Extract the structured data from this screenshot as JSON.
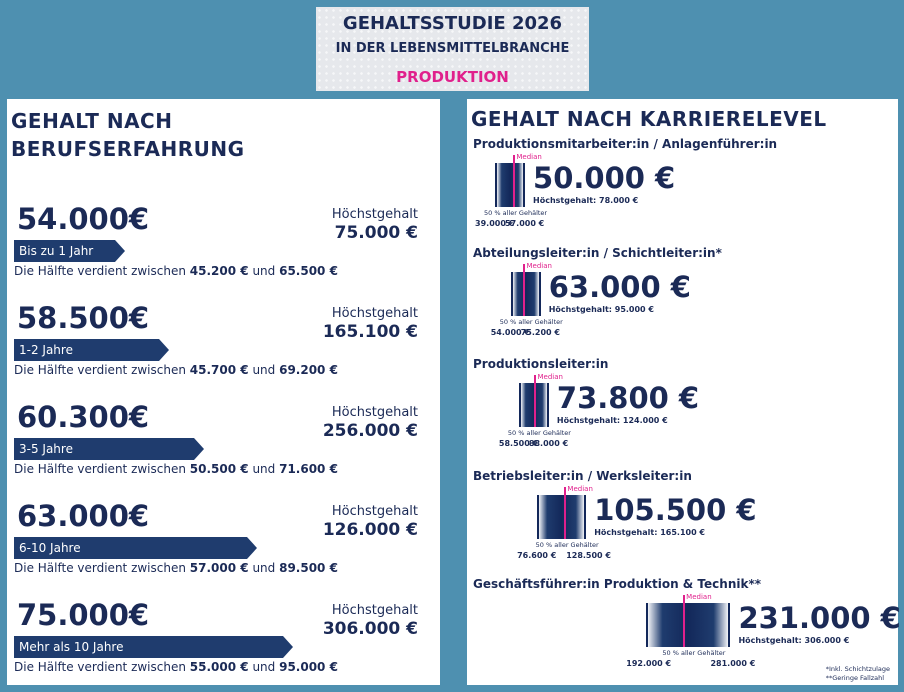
{
  "header": {
    "title": "GEHALTSSTUDIE 2026",
    "subtitle": "IN DER LEBENSMITTELBRANCHE",
    "category": "PRODUKTION"
  },
  "left_panel": {
    "title_line1": "GEHALT NACH",
    "title_line2": "BERUFSERFAHRUNG",
    "max_label": "Höchstgehalt",
    "note_prefix": "Die Hälfte verdient zwischen ",
    "note_and": " und "
  },
  "right_panel": {
    "title": "GEHALT NACH  KARRIERELEVEL",
    "median_label": "Median",
    "range_label": "50 % aller Gehälter",
    "footnote1": "*Inkl. Schichtzulage",
    "footnote2": "**Geringe Fallzahl"
  },
  "chart_data": [
    {
      "type": "bar",
      "title": "GEHALT NACH BERUFSERFAHRUNG",
      "categories": [
        "Bis zu 1 Jahr",
        "1-2 Jahre",
        "3-5 Jahre",
        "6-10 Jahre",
        "Mehr als 10 Jahre"
      ],
      "values": [
        54000,
        58500,
        60300,
        63000,
        75000
      ],
      "rows": [
        {
          "category": "Bis zu 1 Jahr",
          "median": 54000,
          "median_text": "54.000€",
          "lower": 45200,
          "lower_text": "45.200 €",
          "upper": 65500,
          "upper_text": "65.500 €",
          "max": 75000,
          "max_text": "75.000 €"
        },
        {
          "category": "1-2 Jahre",
          "median": 58500,
          "median_text": "58.500€",
          "lower": 45700,
          "lower_text": "45.700 €",
          "upper": 69200,
          "upper_text": "69.200 €",
          "max": 165100,
          "max_text": "165.100 €"
        },
        {
          "category": "3-5 Jahre",
          "median": 60300,
          "median_text": "60.300€",
          "lower": 50500,
          "lower_text": "50.500 €",
          "upper": 71600,
          "upper_text": "71.600 €",
          "max": 256000,
          "max_text": "256.000 €"
        },
        {
          "category": "6-10 Jahre",
          "median": 63000,
          "median_text": "63.000€",
          "lower": 57000,
          "lower_text": "57.000 €",
          "upper": 89500,
          "upper_text": "89.500 €",
          "max": 126000,
          "max_text": "126.000 €"
        },
        {
          "category": "Mehr als 10 Jahre",
          "median": 75000,
          "median_text": "75.000€",
          "lower": 55000,
          "lower_text": "55.000 €",
          "upper": 95000,
          "upper_text": "95.000 €",
          "max": 306000,
          "max_text": "306.000 €"
        }
      ]
    },
    {
      "type": "bar",
      "title": "GEHALT NACH  KARRIERELEVEL",
      "categories": [
        "Produktionsmitarbeiter:in / Anlagenführer:in",
        "Abteilungsleiter:in / Schichtleiter:in*",
        "Produktionsleiter:in",
        "Betriebsleiter:in / Werksleiter:in",
        "Geschäftsführer:in Produktion & Technik**"
      ],
      "values": [
        50000,
        63000,
        73800,
        105500,
        231000
      ],
      "rows": [
        {
          "category": "Produktionsmitarbeiter:in / Anlagenführer:in",
          "median": 50000,
          "median_text": "50.000 €",
          "lower": 39000,
          "lower_text": "39.000 €",
          "upper": 57000,
          "upper_text": "57.000 €",
          "max": 78000,
          "max_text": "Höchstgehalt: 78.000 €"
        },
        {
          "category": "Abteilungsleiter:in / Schichtleiter:in*",
          "median": 63000,
          "median_text": "63.000 €",
          "lower": 54000,
          "lower_text": "54.000 €",
          "upper": 75200,
          "upper_text": "75.200 €",
          "max": 95000,
          "max_text": "Höchstgehalt: 95.000 €"
        },
        {
          "category": "Produktionsleiter:in",
          "median": 73800,
          "median_text": "73.800 €",
          "lower": 58500,
          "lower_text": "58.500 €",
          "upper": 88000,
          "upper_text": "88.000 €",
          "max": 124000,
          "max_text": "Höchstgehalt: 124.000 €"
        },
        {
          "category": "Betriebsleiter:in / Werksleiter:in",
          "median": 105500,
          "median_text": "105.500 €",
          "lower": 76600,
          "lower_text": "76.600 €",
          "upper": 128500,
          "upper_text": "128.500 €",
          "max": 165100,
          "max_text": "Höchstgehalt: 165.100 €"
        },
        {
          "category": "Geschäftsführer:in Produktion & Technik**",
          "median": 231000,
          "median_text": "231.000 €",
          "lower": 192000,
          "lower_text": "192.000 €",
          "upper": 281000,
          "upper_text": "281.000 €",
          "max": 306000,
          "max_text": "Höchstgehalt: 306.000 €"
        }
      ]
    }
  ]
}
